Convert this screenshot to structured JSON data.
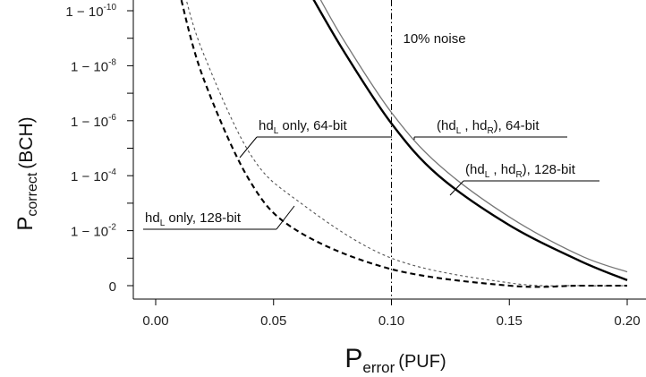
{
  "chart_data": {
    "type": "line",
    "title": "",
    "xlabel": {
      "main": "P",
      "sub": "error",
      "suffix": "(PUF)"
    },
    "ylabel": {
      "main": "P",
      "sub": "correct",
      "suffix": "(BCH)"
    },
    "xlim": [
      -0.01,
      0.205
    ],
    "xticks": [
      0.0,
      0.05,
      0.1,
      0.15,
      0.2
    ],
    "xtick_labels": [
      "0.00",
      "0.05",
      "0.10",
      "0.15",
      "0.20"
    ],
    "ylim_exponent": [
      0,
      10.7
    ],
    "yscale": "log of (1 - P_correct), inverted",
    "yticks": [
      {
        "exp": 10,
        "base": "1 − 10",
        "sup": "-10"
      },
      {
        "exp": 8,
        "base": "1 − 10",
        "sup": "-8"
      },
      {
        "exp": 6,
        "base": "1 − 10",
        "sup": "-6"
      },
      {
        "exp": 4,
        "base": "1 − 10",
        "sup": "-4"
      },
      {
        "exp": 2,
        "base": "1 − 10",
        "sup": "-2"
      },
      {
        "exp": 0,
        "base": "0",
        "sup": ""
      }
    ],
    "minor_yticks": [
      9,
      7,
      5,
      3,
      1
    ],
    "grid": false,
    "vline": {
      "x": 0.1,
      "label": "10% noise",
      "style": "dash-dot"
    },
    "series": [
      {
        "name": "(hd_L , hd_R), 64-bit",
        "color": "#777777",
        "style": "solid-thin",
        "x": [
          0.068,
          0.08,
          0.1,
          0.12,
          0.15,
          0.18,
          0.2
        ],
        "y_exp": [
          10.7,
          8.9,
          6.3,
          4.4,
          2.5,
          1.1,
          0.5
        ]
      },
      {
        "name": "(hd_L , hd_R), 128-bit",
        "color": "#000000",
        "style": "solid-thick",
        "x": [
          0.065,
          0.08,
          0.1,
          0.12,
          0.15,
          0.18,
          0.2
        ],
        "y_exp": [
          10.7,
          8.5,
          5.9,
          4.0,
          2.2,
          0.9,
          0.2
        ]
      },
      {
        "name": "hd_L only, 64-bit",
        "color": "#555555",
        "style": "dashed-thin",
        "x": [
          0.012,
          0.02,
          0.04,
          0.06,
          0.1,
          0.15,
          0.18,
          0.2
        ],
        "y_exp": [
          10.7,
          8.5,
          4.8,
          3.1,
          1.0,
          0.1,
          0.0,
          0.0
        ]
      },
      {
        "name": "hd_L only, 128-bit",
        "color": "#000000",
        "style": "dashed-thick",
        "x": [
          0.01,
          0.02,
          0.04,
          0.06,
          0.1,
          0.15,
          0.18,
          0.2
        ],
        "y_exp": [
          10.7,
          7.6,
          3.8,
          2.0,
          0.6,
          0.0,
          0.0,
          0.0
        ]
      }
    ],
    "annotations": [
      {
        "id": "hd64",
        "parts": [
          "hd",
          "L",
          " only, 64-bit"
        ]
      },
      {
        "id": "hd128",
        "parts": [
          "hd",
          "L",
          " only, 128-bit"
        ]
      },
      {
        "id": "pair64",
        "parts": [
          "(hd",
          "L",
          " , hd",
          "R",
          "), 64-bit"
        ]
      },
      {
        "id": "pair128",
        "parts": [
          "(hd",
          "L",
          " , hd",
          "R",
          "), 128-bit"
        ]
      }
    ]
  }
}
